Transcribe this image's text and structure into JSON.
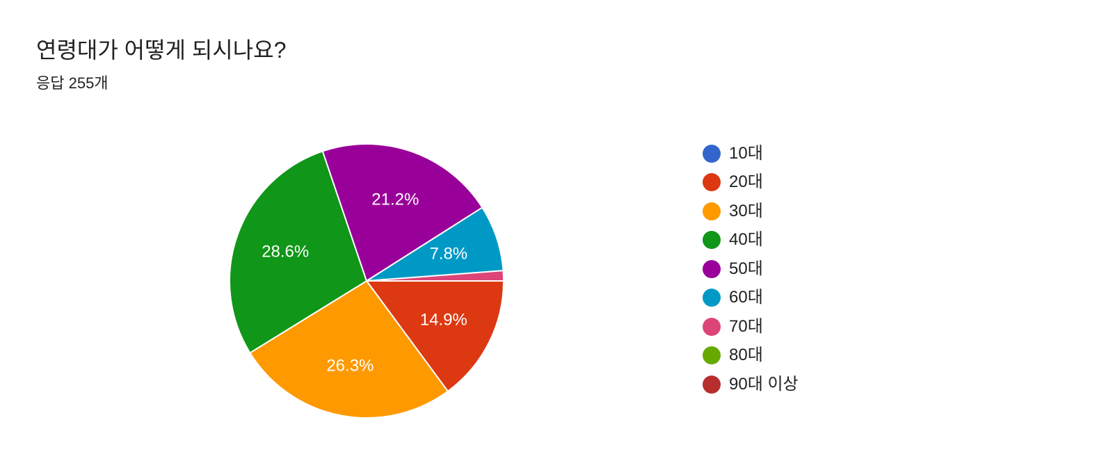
{
  "title": "연령대가 어떻게 되시나요?",
  "subtitle": "응답 255개",
  "chart_data": {
    "type": "pie",
    "title": "연령대가 어떻게 되시나요?",
    "subtitle": "응답 255개",
    "legend_position": "right",
    "slices": [
      {
        "label": "10대",
        "value": 0.0,
        "display": "",
        "color": "#3366cc"
      },
      {
        "label": "20대",
        "value": 14.9,
        "display": "14.9%",
        "color": "#dc3912"
      },
      {
        "label": "30대",
        "value": 26.3,
        "display": "26.3%",
        "color": "#ff9900"
      },
      {
        "label": "40대",
        "value": 28.6,
        "display": "28.6%",
        "color": "#109618"
      },
      {
        "label": "50대",
        "value": 21.2,
        "display": "21.2%",
        "color": "#990099"
      },
      {
        "label": "60대",
        "value": 7.8,
        "display": "7.8%",
        "color": "#0099c6"
      },
      {
        "label": "70대",
        "value": 1.2,
        "display": "",
        "color": "#dd4477"
      },
      {
        "label": "80대",
        "value": 0.0,
        "display": "",
        "color": "#66aa00"
      },
      {
        "label": "90대 이상",
        "value": 0.0,
        "display": "",
        "color": "#b82e2e"
      }
    ]
  }
}
